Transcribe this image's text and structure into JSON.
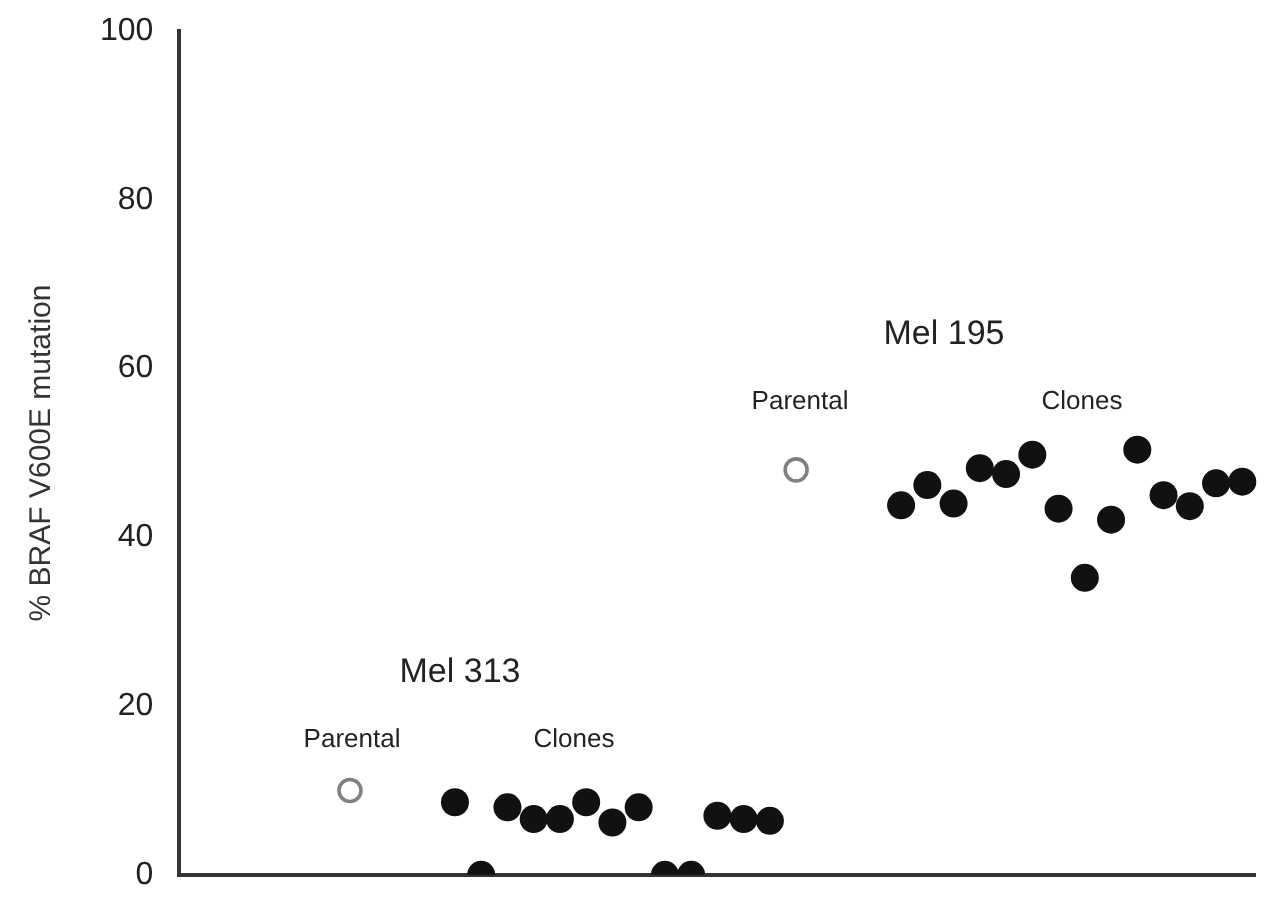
{
  "chart_data": {
    "type": "scatter",
    "ylabel": "% BRAF V600E mutation",
    "categories": [
      null,
      null,
      null,
      null,
      null,
      null,
      null,
      null,
      null,
      null,
      null,
      null,
      null,
      null,
      null,
      null,
      null,
      null,
      null,
      null,
      null,
      null,
      null,
      null,
      null,
      null,
      null,
      null,
      null,
      null,
      null,
      null,
      null,
      null,
      null,
      null,
      null,
      null,
      null,
      null,
      null
    ],
    "series": [
      {
        "color": "#808080",
        "values": [
          null,
          null,
          null,
          null,
          null,
          null,
          10,
          null,
          null,
          null,
          null,
          null,
          null,
          null,
          null,
          null,
          null,
          null,
          null,
          null,
          null,
          null,
          null,
          48,
          null,
          null,
          null,
          null,
          null,
          null,
          null,
          null,
          null,
          null,
          null,
          null,
          null,
          null,
          null,
          null,
          null
        ]
      },
      {
        "color": "#111111",
        "values": [
          null,
          null,
          null,
          null,
          null,
          null,
          null,
          null,
          null,
          null,
          8.6,
          0,
          8,
          6.6,
          6.6,
          8.6,
          6.2,
          8,
          0,
          0,
          7,
          6.6,
          6.4,
          null,
          null,
          null,
          null,
          43.8,
          46.2,
          44,
          48.2,
          47.5,
          49.8,
          43.4,
          35.2,
          42.1,
          50.4,
          45,
          43.7,
          46.4,
          46.6
        ]
      }
    ],
    "marker": "circle",
    "ylim": [
      0,
      100
    ],
    "yticks": [
      0,
      20,
      40,
      60,
      80,
      100
    ],
    "grid": false,
    "legend": false,
    "tick_labels": "y",
    "annotations": [
      "Mel 313",
      "Parental",
      "Clones",
      "Mel 195",
      "Parental",
      "Clones"
    ]
  }
}
